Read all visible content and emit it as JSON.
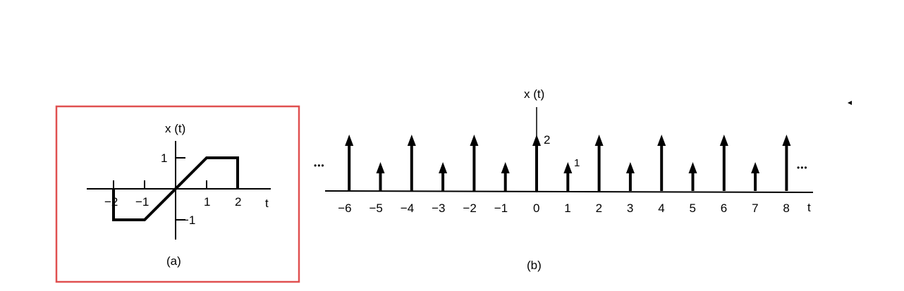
{
  "highlight_color": "#e05050",
  "figure_a": {
    "ylabel": "x (t)",
    "xlabel": "t",
    "caption": "(a)",
    "x_ticks": [
      {
        "value": -2,
        "label": "−2"
      },
      {
        "value": -1,
        "label": "−1"
      },
      {
        "value": 1,
        "label": "1"
      },
      {
        "value": 2,
        "label": "2"
      }
    ],
    "y_ticks": [
      {
        "value": 1,
        "label": "1"
      },
      {
        "value": -1,
        "label": "−1"
      }
    ],
    "waveform": [
      [
        -2,
        0
      ],
      [
        -2,
        -1
      ],
      [
        -1,
        -1
      ],
      [
        1,
        1
      ],
      [
        2,
        1
      ],
      [
        2,
        0
      ]
    ]
  },
  "figure_b": {
    "ylabel": "x (t)",
    "xlabel": "t",
    "caption": "(b)",
    "ellipsis_left": "•••",
    "ellipsis_right": "•••",
    "impulse_label_2": "2",
    "impulse_label_1": "1",
    "x_ticks": [
      {
        "value": -6,
        "label": "−6"
      },
      {
        "value": -5,
        "label": "−5"
      },
      {
        "value": -4,
        "label": "−4"
      },
      {
        "value": -3,
        "label": "−3"
      },
      {
        "value": -2,
        "label": "−2"
      },
      {
        "value": -1,
        "label": "−1"
      },
      {
        "value": 0,
        "label": "0"
      },
      {
        "value": 1,
        "label": "1"
      },
      {
        "value": 2,
        "label": "2"
      },
      {
        "value": 3,
        "label": "3"
      },
      {
        "value": 4,
        "label": "4"
      },
      {
        "value": 5,
        "label": "5"
      },
      {
        "value": 6,
        "label": "6"
      },
      {
        "value": 7,
        "label": "7"
      },
      {
        "value": 8,
        "label": "8"
      }
    ],
    "impulses": [
      {
        "t": -6,
        "area": 2
      },
      {
        "t": -5,
        "area": 1
      },
      {
        "t": -4,
        "area": 2
      },
      {
        "t": -3,
        "area": 1
      },
      {
        "t": -2,
        "area": 2
      },
      {
        "t": -1,
        "area": 1
      },
      {
        "t": 0,
        "area": 2
      },
      {
        "t": 1,
        "area": 1
      },
      {
        "t": 2,
        "area": 2
      },
      {
        "t": 3,
        "area": 1
      },
      {
        "t": 4,
        "area": 2
      },
      {
        "t": 5,
        "area": 1
      },
      {
        "t": 6,
        "area": 2
      },
      {
        "t": 7,
        "area": 1
      },
      {
        "t": 8,
        "area": 2
      }
    ]
  }
}
